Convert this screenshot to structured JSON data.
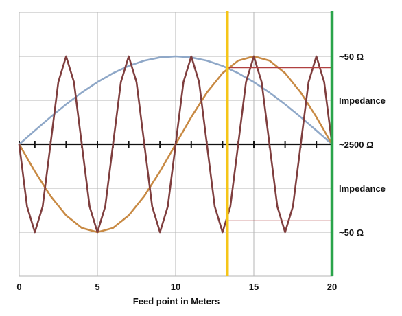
{
  "chart_data": {
    "type": "line",
    "title": "",
    "xlabel": "Feed point in Meters",
    "ylabel": "",
    "xlim": [
      0,
      20
    ],
    "ylim": [
      -1.5,
      1.5
    ],
    "x_ticks": [
      0,
      5,
      10,
      15,
      20
    ],
    "x_tick_labels": [
      "0",
      "5",
      "10",
      "15",
      "20"
    ],
    "minor_tick_step": 1,
    "grid": true,
    "legend": "none",
    "series": [
      {
        "color": "#8fa8c8",
        "points": [
          [
            0,
            0
          ],
          [
            1,
            0.156
          ],
          [
            2,
            0.309
          ],
          [
            3,
            0.454
          ],
          [
            4,
            0.588
          ],
          [
            5,
            0.707
          ],
          [
            6,
            0.809
          ],
          [
            7,
            0.891
          ],
          [
            8,
            0.951
          ],
          [
            9,
            0.988
          ],
          [
            10,
            1
          ],
          [
            11,
            0.988
          ],
          [
            12,
            0.951
          ],
          [
            13,
            0.891
          ],
          [
            14,
            0.809
          ],
          [
            15,
            0.707
          ],
          [
            16,
            0.588
          ],
          [
            17,
            0.454
          ],
          [
            18,
            0.309
          ],
          [
            19,
            0.156
          ],
          [
            20,
            0
          ]
        ]
      },
      {
        "color": "#c88a44",
        "points": [
          [
            0,
            0
          ],
          [
            1,
            -0.309
          ],
          [
            2,
            -0.588
          ],
          [
            3,
            -0.809
          ],
          [
            4,
            -0.951
          ],
          [
            5,
            -1
          ],
          [
            6,
            -0.951
          ],
          [
            7,
            -0.809
          ],
          [
            8,
            -0.588
          ],
          [
            9,
            -0.309
          ],
          [
            10,
            0
          ],
          [
            11,
            0.309
          ],
          [
            12,
            0.588
          ],
          [
            13,
            0.809
          ],
          [
            14,
            0.951
          ],
          [
            15,
            1
          ],
          [
            16,
            0.951
          ],
          [
            17,
            0.809
          ],
          [
            18,
            0.588
          ],
          [
            19,
            0.309
          ],
          [
            20,
            0
          ]
        ]
      },
      {
        "color": "#7f3e3e",
        "points": [
          [
            0,
            0
          ],
          [
            0.5,
            -0.707
          ],
          [
            1,
            -1
          ],
          [
            1.5,
            -0.707
          ],
          [
            2,
            0
          ],
          [
            2.5,
            0.707
          ],
          [
            3,
            1
          ],
          [
            3.5,
            0.707
          ],
          [
            4,
            0
          ],
          [
            4.5,
            -0.707
          ],
          [
            5,
            -1
          ],
          [
            5.5,
            -0.707
          ],
          [
            6,
            0
          ],
          [
            6.5,
            0.707
          ],
          [
            7,
            1
          ],
          [
            7.5,
            0.707
          ],
          [
            8,
            0
          ],
          [
            8.5,
            -0.707
          ],
          [
            9,
            -1
          ],
          [
            9.5,
            -0.707
          ],
          [
            10,
            0
          ],
          [
            10.5,
            0.707
          ],
          [
            11,
            1
          ],
          [
            11.5,
            0.707
          ],
          [
            12,
            0
          ],
          [
            12.5,
            -0.707
          ],
          [
            13,
            -1
          ],
          [
            13.5,
            -0.707
          ],
          [
            14,
            0
          ],
          [
            14.5,
            0.707
          ],
          [
            15,
            1
          ],
          [
            15.5,
            0.707
          ],
          [
            16,
            0
          ],
          [
            16.5,
            -0.707
          ],
          [
            17,
            -1
          ],
          [
            17.5,
            -0.707
          ],
          [
            18,
            0
          ],
          [
            18.5,
            0.707
          ],
          [
            19,
            1
          ],
          [
            19.5,
            0.707
          ],
          [
            20,
            0
          ]
        ]
      }
    ],
    "vertical_markers": [
      {
        "x": 13.3,
        "color": "#f5c518"
      },
      {
        "x": 20,
        "color": "#2aa44a"
      }
    ],
    "horizontal_segments": [
      {
        "x_start": 13.3,
        "x_end": 20,
        "y": 0.87,
        "color": "#b04040"
      },
      {
        "x_start": 13.3,
        "x_end": 20,
        "y": -0.87,
        "color": "#b04040"
      }
    ],
    "annotations": [
      {
        "text": "~50 Ω",
        "y": 1
      },
      {
        "text": "Impedance",
        "y": 0.5
      },
      {
        "text": "~2500 Ω",
        "y": 0
      },
      {
        "text": "Impedance",
        "y": -0.5
      },
      {
        "text": "~50 Ω",
        "y": -1
      }
    ]
  }
}
